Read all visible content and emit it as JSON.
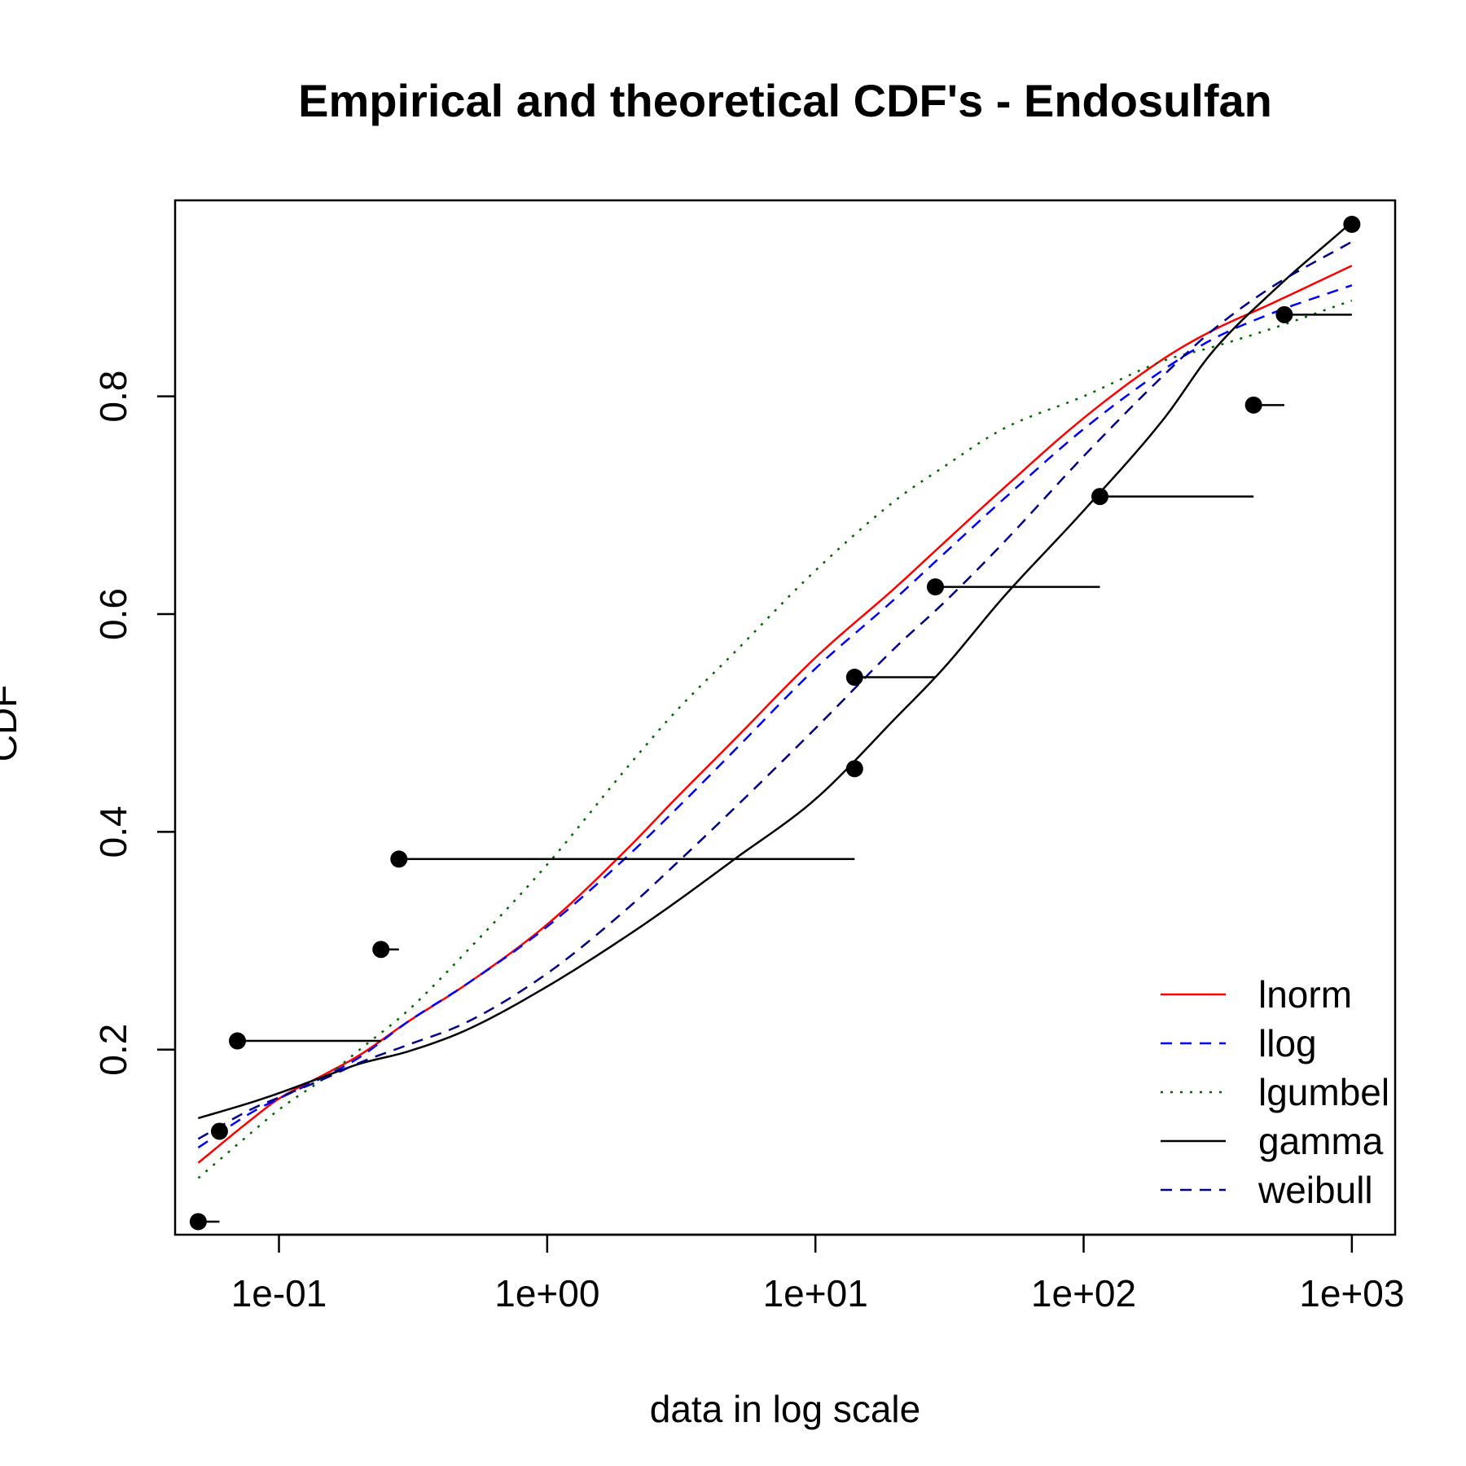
{
  "chart_data": {
    "type": "line",
    "title": "Empirical and theoretical CDF's - Endosulfan",
    "xlabel": "data in log scale",
    "ylabel": "CDF",
    "x_scale": "log10",
    "xlim": [
      0.041,
      1450
    ],
    "ylim": [
      0.03,
      0.98
    ],
    "x_ticks": [
      0.1,
      1,
      10,
      100,
      1000
    ],
    "x_tick_labels": [
      "1e-01",
      "1e+00",
      "1e+01",
      "1e+02",
      "1e+03"
    ],
    "y_ticks": [
      0.2,
      0.4,
      0.6,
      0.8
    ],
    "y_tick_labels": [
      "0.2",
      "0.4",
      "0.6",
      "0.8"
    ],
    "grid": false,
    "legend_position": "bottom-right",
    "empirical": {
      "name": "",
      "points": [
        {
          "x": 0.05,
          "y": 0.042,
          "x_next": 0.06
        },
        {
          "x": 0.06,
          "y": 0.125,
          "x_next": 0.06
        },
        {
          "x": 0.07,
          "y": 0.208,
          "x_next": 0.24
        },
        {
          "x": 0.24,
          "y": 0.292,
          "x_next": 0.28
        },
        {
          "x": 0.28,
          "y": 0.375,
          "x_next": 14
        },
        {
          "x": 14,
          "y": 0.458,
          "x_next": 14
        },
        {
          "x": 14,
          "y": 0.542,
          "x_next": 28
        },
        {
          "x": 28,
          "y": 0.625,
          "x_next": 115
        },
        {
          "x": 115,
          "y": 0.708,
          "x_next": 430
        },
        {
          "x": 430,
          "y": 0.792,
          "x_next": 560
        },
        {
          "x": 560,
          "y": 0.875,
          "x_next": 1000
        },
        {
          "x": 1000,
          "y": 0.958,
          "x_next": 1000
        }
      ],
      "color": "#000000"
    },
    "series": [
      {
        "name": "lnorm",
        "color": "#ff0000",
        "dash": "solid",
        "x": [
          0.05,
          0.08,
          0.1,
          0.15,
          0.2,
          0.3,
          0.5,
          1,
          2,
          3,
          5,
          10,
          20,
          30,
          50,
          100,
          200,
          300,
          500,
          1000
        ],
        "values": [
          0.096,
          0.137,
          0.155,
          0.178,
          0.195,
          0.225,
          0.26,
          0.315,
          0.385,
          0.43,
          0.485,
          0.56,
          0.625,
          0.665,
          0.715,
          0.78,
          0.835,
          0.86,
          0.885,
          0.92
        ]
      },
      {
        "name": "llog",
        "color": "#0000ff",
        "dash": "dashed",
        "x": [
          0.05,
          0.08,
          0.1,
          0.15,
          0.2,
          0.3,
          0.5,
          1,
          2,
          3,
          5,
          10,
          20,
          30,
          50,
          100,
          200,
          300,
          500,
          1000
        ],
        "values": [
          0.11,
          0.143,
          0.155,
          0.176,
          0.193,
          0.225,
          0.26,
          0.313,
          0.378,
          0.42,
          0.475,
          0.55,
          0.615,
          0.655,
          0.705,
          0.77,
          0.825,
          0.852,
          0.876,
          0.902
        ]
      },
      {
        "name": "lgumbel",
        "color": "#006400",
        "dash": "dotted",
        "x": [
          0.05,
          0.08,
          0.1,
          0.15,
          0.2,
          0.3,
          0.5,
          1,
          2,
          3,
          5,
          10,
          20,
          30,
          50,
          100,
          200,
          300,
          500,
          1000
        ],
        "values": [
          0.082,
          0.125,
          0.145,
          0.175,
          0.2,
          0.235,
          0.29,
          0.37,
          0.46,
          0.51,
          0.565,
          0.64,
          0.705,
          0.735,
          0.77,
          0.8,
          0.833,
          0.845,
          0.862,
          0.888
        ]
      },
      {
        "name": "gamma",
        "color": "#000000",
        "dash": "solid",
        "x": [
          0.05,
          0.08,
          0.1,
          0.15,
          0.2,
          0.3,
          0.5,
          1,
          2,
          3,
          5,
          10,
          20,
          30,
          50,
          100,
          200,
          300,
          500,
          1000
        ],
        "values": [
          0.137,
          0.152,
          0.16,
          0.176,
          0.187,
          0.198,
          0.218,
          0.258,
          0.305,
          0.335,
          0.375,
          0.43,
          0.505,
          0.55,
          0.615,
          0.695,
          0.78,
          0.84,
          0.895,
          0.96
        ]
      },
      {
        "name": "weibull",
        "color": "#00008b",
        "dash": "dashed",
        "x": [
          0.05,
          0.08,
          0.1,
          0.15,
          0.2,
          0.3,
          0.5,
          1,
          2,
          3,
          5,
          10,
          20,
          30,
          50,
          100,
          200,
          300,
          500,
          1000
        ],
        "values": [
          0.118,
          0.146,
          0.156,
          0.174,
          0.188,
          0.204,
          0.225,
          0.27,
          0.33,
          0.37,
          0.422,
          0.495,
          0.57,
          0.61,
          0.665,
          0.745,
          0.82,
          0.86,
          0.9,
          0.942
        ]
      }
    ]
  }
}
